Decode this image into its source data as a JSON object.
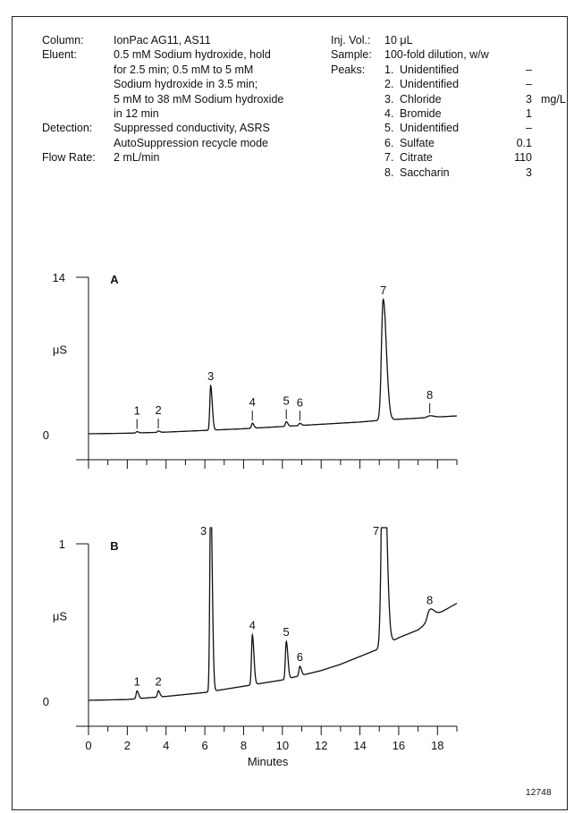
{
  "conditions": {
    "left": [
      {
        "label": "Column:",
        "lines": [
          "IonPac AG11, AS11"
        ]
      },
      {
        "label": "Eluent:",
        "lines": [
          "0.5 mM Sodium hydroxide, hold",
          "for 2.5 min; 0.5 mM to 5 mM",
          "Sodium hydroxide in 3.5 min;",
          "5 mM to 38 mM Sodium hydroxide",
          "in 12 min"
        ]
      },
      {
        "label": "Detection:",
        "lines": [
          "Suppressed conductivity, ASRS",
          "AutoSuppression recycle mode"
        ]
      },
      {
        "label": "Flow Rate:",
        "lines": [
          "2 mL/min"
        ]
      }
    ],
    "inj_vol_label": "Inj. Vol.:",
    "inj_vol_value": "10 μL",
    "sample_label": "Sample:",
    "sample_value": "100-fold dilution, w/w",
    "peaks_label": "Peaks:",
    "peaks": [
      {
        "num": "1.",
        "name": "Unidentified",
        "amount": "–",
        "unit": ""
      },
      {
        "num": "2.",
        "name": "Unidentified",
        "amount": "–",
        "unit": ""
      },
      {
        "num": "3.",
        "name": "Chloride",
        "amount": "3",
        "unit": "mg/L"
      },
      {
        "num": "4.",
        "name": "Bromide",
        "amount": "1",
        "unit": ""
      },
      {
        "num": "5.",
        "name": "Unidentified",
        "amount": "–",
        "unit": ""
      },
      {
        "num": "6.",
        "name": "Sulfate",
        "amount": "0.1",
        "unit": ""
      },
      {
        "num": "7.",
        "name": "Citrate",
        "amount": "110",
        "unit": ""
      },
      {
        "num": "8.",
        "name": "Saccharin",
        "amount": "3",
        "unit": ""
      }
    ]
  },
  "chart_data": [
    {
      "type": "line",
      "panel_label": "A",
      "ylabel": "μS",
      "ylim": [
        0,
        14
      ],
      "yticks": [
        "0",
        "14"
      ],
      "xlim": [
        0,
        19
      ],
      "x_tick_values": [
        0,
        2,
        4,
        6,
        8,
        10,
        12,
        14,
        16,
        18
      ],
      "baseline": [
        [
          0,
          0
        ],
        [
          2,
          0.05
        ],
        [
          4,
          0.15
        ],
        [
          6,
          0.3
        ],
        [
          8,
          0.45
        ],
        [
          10,
          0.65
        ],
        [
          12,
          0.85
        ],
        [
          14,
          1.05
        ],
        [
          15,
          1.2
        ],
        [
          16,
          1.3
        ],
        [
          18,
          1.5
        ],
        [
          19,
          1.6
        ]
      ],
      "peaks": [
        {
          "label": "1",
          "x": 2.5,
          "height": 0.12,
          "tick": true
        },
        {
          "label": "2",
          "x": 3.6,
          "height": 0.12,
          "tick": true
        },
        {
          "label": "3",
          "x": 6.3,
          "height": 4.0,
          "tick": false
        },
        {
          "label": "4",
          "x": 8.45,
          "height": 0.45,
          "tick": true
        },
        {
          "label": "5",
          "x": 10.2,
          "height": 0.4,
          "tick": true
        },
        {
          "label": "6",
          "x": 10.9,
          "height": 0.2,
          "tick": true
        },
        {
          "label": "7",
          "x": 15.2,
          "height": 10.8,
          "tick": false
        },
        {
          "label": "8",
          "x": 17.6,
          "height": 0.15,
          "tick": true
        }
      ]
    },
    {
      "type": "line",
      "panel_label": "B",
      "ylabel": "μS",
      "ylim": [
        0,
        1
      ],
      "yticks": [
        "0",
        "1"
      ],
      "xlim": [
        0,
        19
      ],
      "xlabel": "Minutes",
      "x_tick_labels": [
        "0",
        "2",
        "4",
        "6",
        "8",
        "10",
        "12",
        "14",
        "16",
        "18"
      ],
      "x_tick_values": [
        0,
        2,
        4,
        6,
        8,
        10,
        12,
        14,
        16,
        18
      ],
      "baseline": [
        [
          0,
          0
        ],
        [
          2,
          0.005
        ],
        [
          4,
          0.025
        ],
        [
          6,
          0.05
        ],
        [
          8,
          0.09
        ],
        [
          10,
          0.13
        ],
        [
          11,
          0.16
        ],
        [
          12,
          0.19
        ],
        [
          13,
          0.23
        ],
        [
          14,
          0.28
        ],
        [
          15,
          0.33
        ],
        [
          16,
          0.4
        ],
        [
          17,
          0.45
        ],
        [
          18,
          0.55
        ],
        [
          19,
          0.62
        ]
      ],
      "peaks": [
        {
          "label": "1",
          "x": 2.5,
          "height": 0.05,
          "tick": false
        },
        {
          "label": "2",
          "x": 3.6,
          "height": 0.04,
          "tick": false
        },
        {
          "label": "3",
          "x": 6.3,
          "height": 1.3,
          "tick": false
        },
        {
          "label": "4",
          "x": 8.45,
          "height": 0.32,
          "tick": false
        },
        {
          "label": "5",
          "x": 10.2,
          "height": 0.24,
          "tick": false
        },
        {
          "label": "6",
          "x": 10.9,
          "height": 0.06,
          "tick": false
        },
        {
          "label": "7",
          "x": 15.2,
          "height": 1.5,
          "tick": false
        },
        {
          "label": "8",
          "x": 17.6,
          "height": 0.07,
          "tick": false
        }
      ]
    }
  ],
  "figure_id": "12748"
}
